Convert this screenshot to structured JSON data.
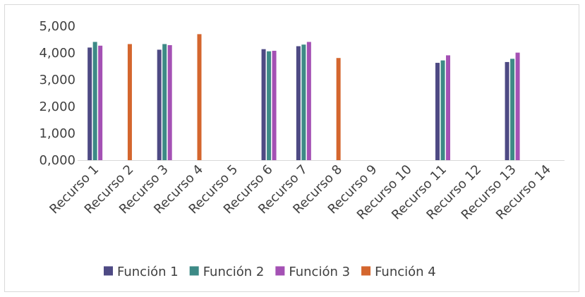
{
  "chart_data": {
    "type": "bar",
    "categories": [
      "Recurso 1",
      "Recurso 2",
      "Recurso 3",
      "Recurso 4",
      "Recurso 5",
      "Recurso 6",
      "Recurso 7",
      "Recurso 8",
      "Recurso 9",
      "Recurso 10",
      "Recurso 11",
      "Recurso 12",
      "Recurso 13",
      "Recurso 14"
    ],
    "series": [
      {
        "name": "Función 1",
        "color": "#4e4a84",
        "values": [
          4.2,
          null,
          4.12,
          null,
          null,
          4.14,
          4.25,
          null,
          null,
          null,
          3.63,
          null,
          3.66,
          null
        ]
      },
      {
        "name": "Función 2",
        "color": "#3d8a86",
        "values": [
          4.41,
          null,
          4.33,
          null,
          null,
          4.06,
          4.31,
          null,
          null,
          null,
          3.72,
          null,
          3.78,
          null
        ]
      },
      {
        "name": "Función 3",
        "color": "#a451b4",
        "values": [
          4.27,
          null,
          4.29,
          null,
          null,
          4.08,
          4.41,
          null,
          null,
          null,
          3.91,
          null,
          4.01,
          null
        ]
      },
      {
        "name": "Función 4",
        "color": "#d4662e",
        "values": [
          null,
          4.33,
          null,
          4.7,
          null,
          null,
          null,
          3.81,
          null,
          null,
          null,
          null,
          null,
          null
        ]
      }
    ],
    "y_ticks": [
      "0,000",
      "1,000",
      "2,000",
      "3,000",
      "4,000",
      "5,000"
    ],
    "ylim": [
      0,
      5
    ],
    "gridlines": false,
    "legend_position": "bottom"
  }
}
